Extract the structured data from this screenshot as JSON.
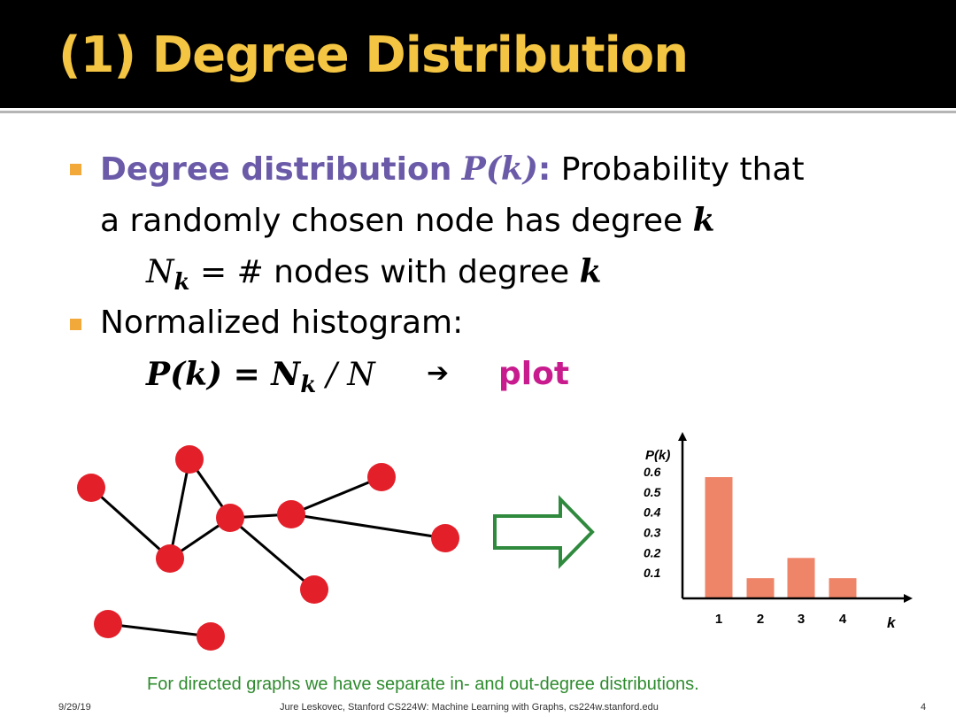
{
  "title": "(1) Degree Distribution",
  "bullet1": {
    "term": "Degree distribution",
    "term_symbol": "P(k)",
    "colon": ":",
    "text_a": " Probability that",
    "text_b": "a randomly chosen node has degree ",
    "k": "k"
  },
  "nk_line": {
    "N": "N",
    "sub": "k",
    "text": " = # nodes with degree ",
    "k": "k"
  },
  "bullet2": {
    "text": "Normalized histogram:"
  },
  "formula": {
    "lhs": "P(k) = N",
    "sub": "k",
    "rhs": " / N",
    "arrow": "➔",
    "plot": "plot"
  },
  "chart_data": {
    "type": "bar",
    "categories": [
      "1",
      "2",
      "3",
      "4"
    ],
    "values": [
      0.6,
      0.1,
      0.2,
      0.1
    ],
    "ylabel": "P(k)",
    "xlabel": "k",
    "yticks": [
      "0.1",
      "0.2",
      "0.3",
      "0.4",
      "0.5",
      "0.6"
    ],
    "ylim": [
      0,
      0.7
    ],
    "bar_color": "#ee8468"
  },
  "graph": {
    "node_color": "#e3202a",
    "edge_color": "#000000",
    "arrow_color": "#2f8a3e"
  },
  "footnote": "For directed graphs we have separate in- and out-degree distributions.",
  "footer": {
    "date": "9/29/19",
    "credit": "Jure Leskovec, Stanford CS224W: Machine Learning with Graphs, cs224w.stanford.edu",
    "page": "4"
  }
}
